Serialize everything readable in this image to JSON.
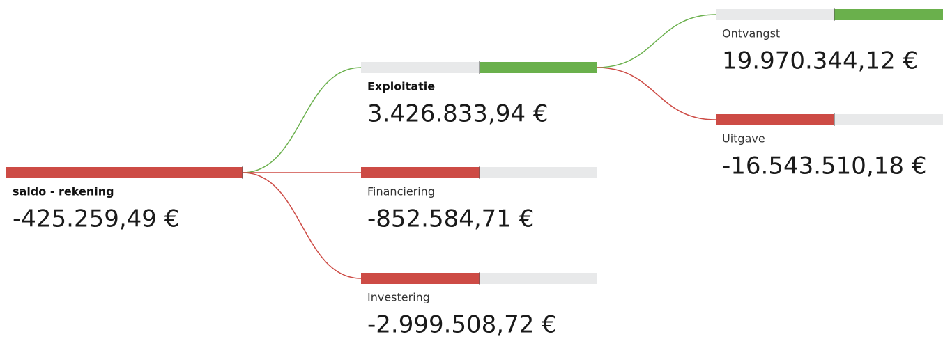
{
  "root": {
    "label": "saldo - rekening",
    "value": -425259.49,
    "value_label": "-425.259,49 €",
    "children": [
      {
        "label": "Exploitatie",
        "value": 3426833.94,
        "value_label": "3.426.833,94 €",
        "children": [
          {
            "label": "Ontvangst",
            "value": 19970344.12,
            "value_label": "19.970.344,12 €"
          },
          {
            "label": "Uitgave",
            "value": -16543510.18,
            "value_label": "-16.543.510,18 €"
          }
        ]
      },
      {
        "label": "Financiering",
        "value": -852584.71,
        "value_label": "-852.584,71 €"
      },
      {
        "label": "Investering",
        "value": -2999508.72,
        "value_label": "-2.999.508,72 €"
      }
    ]
  }
}
